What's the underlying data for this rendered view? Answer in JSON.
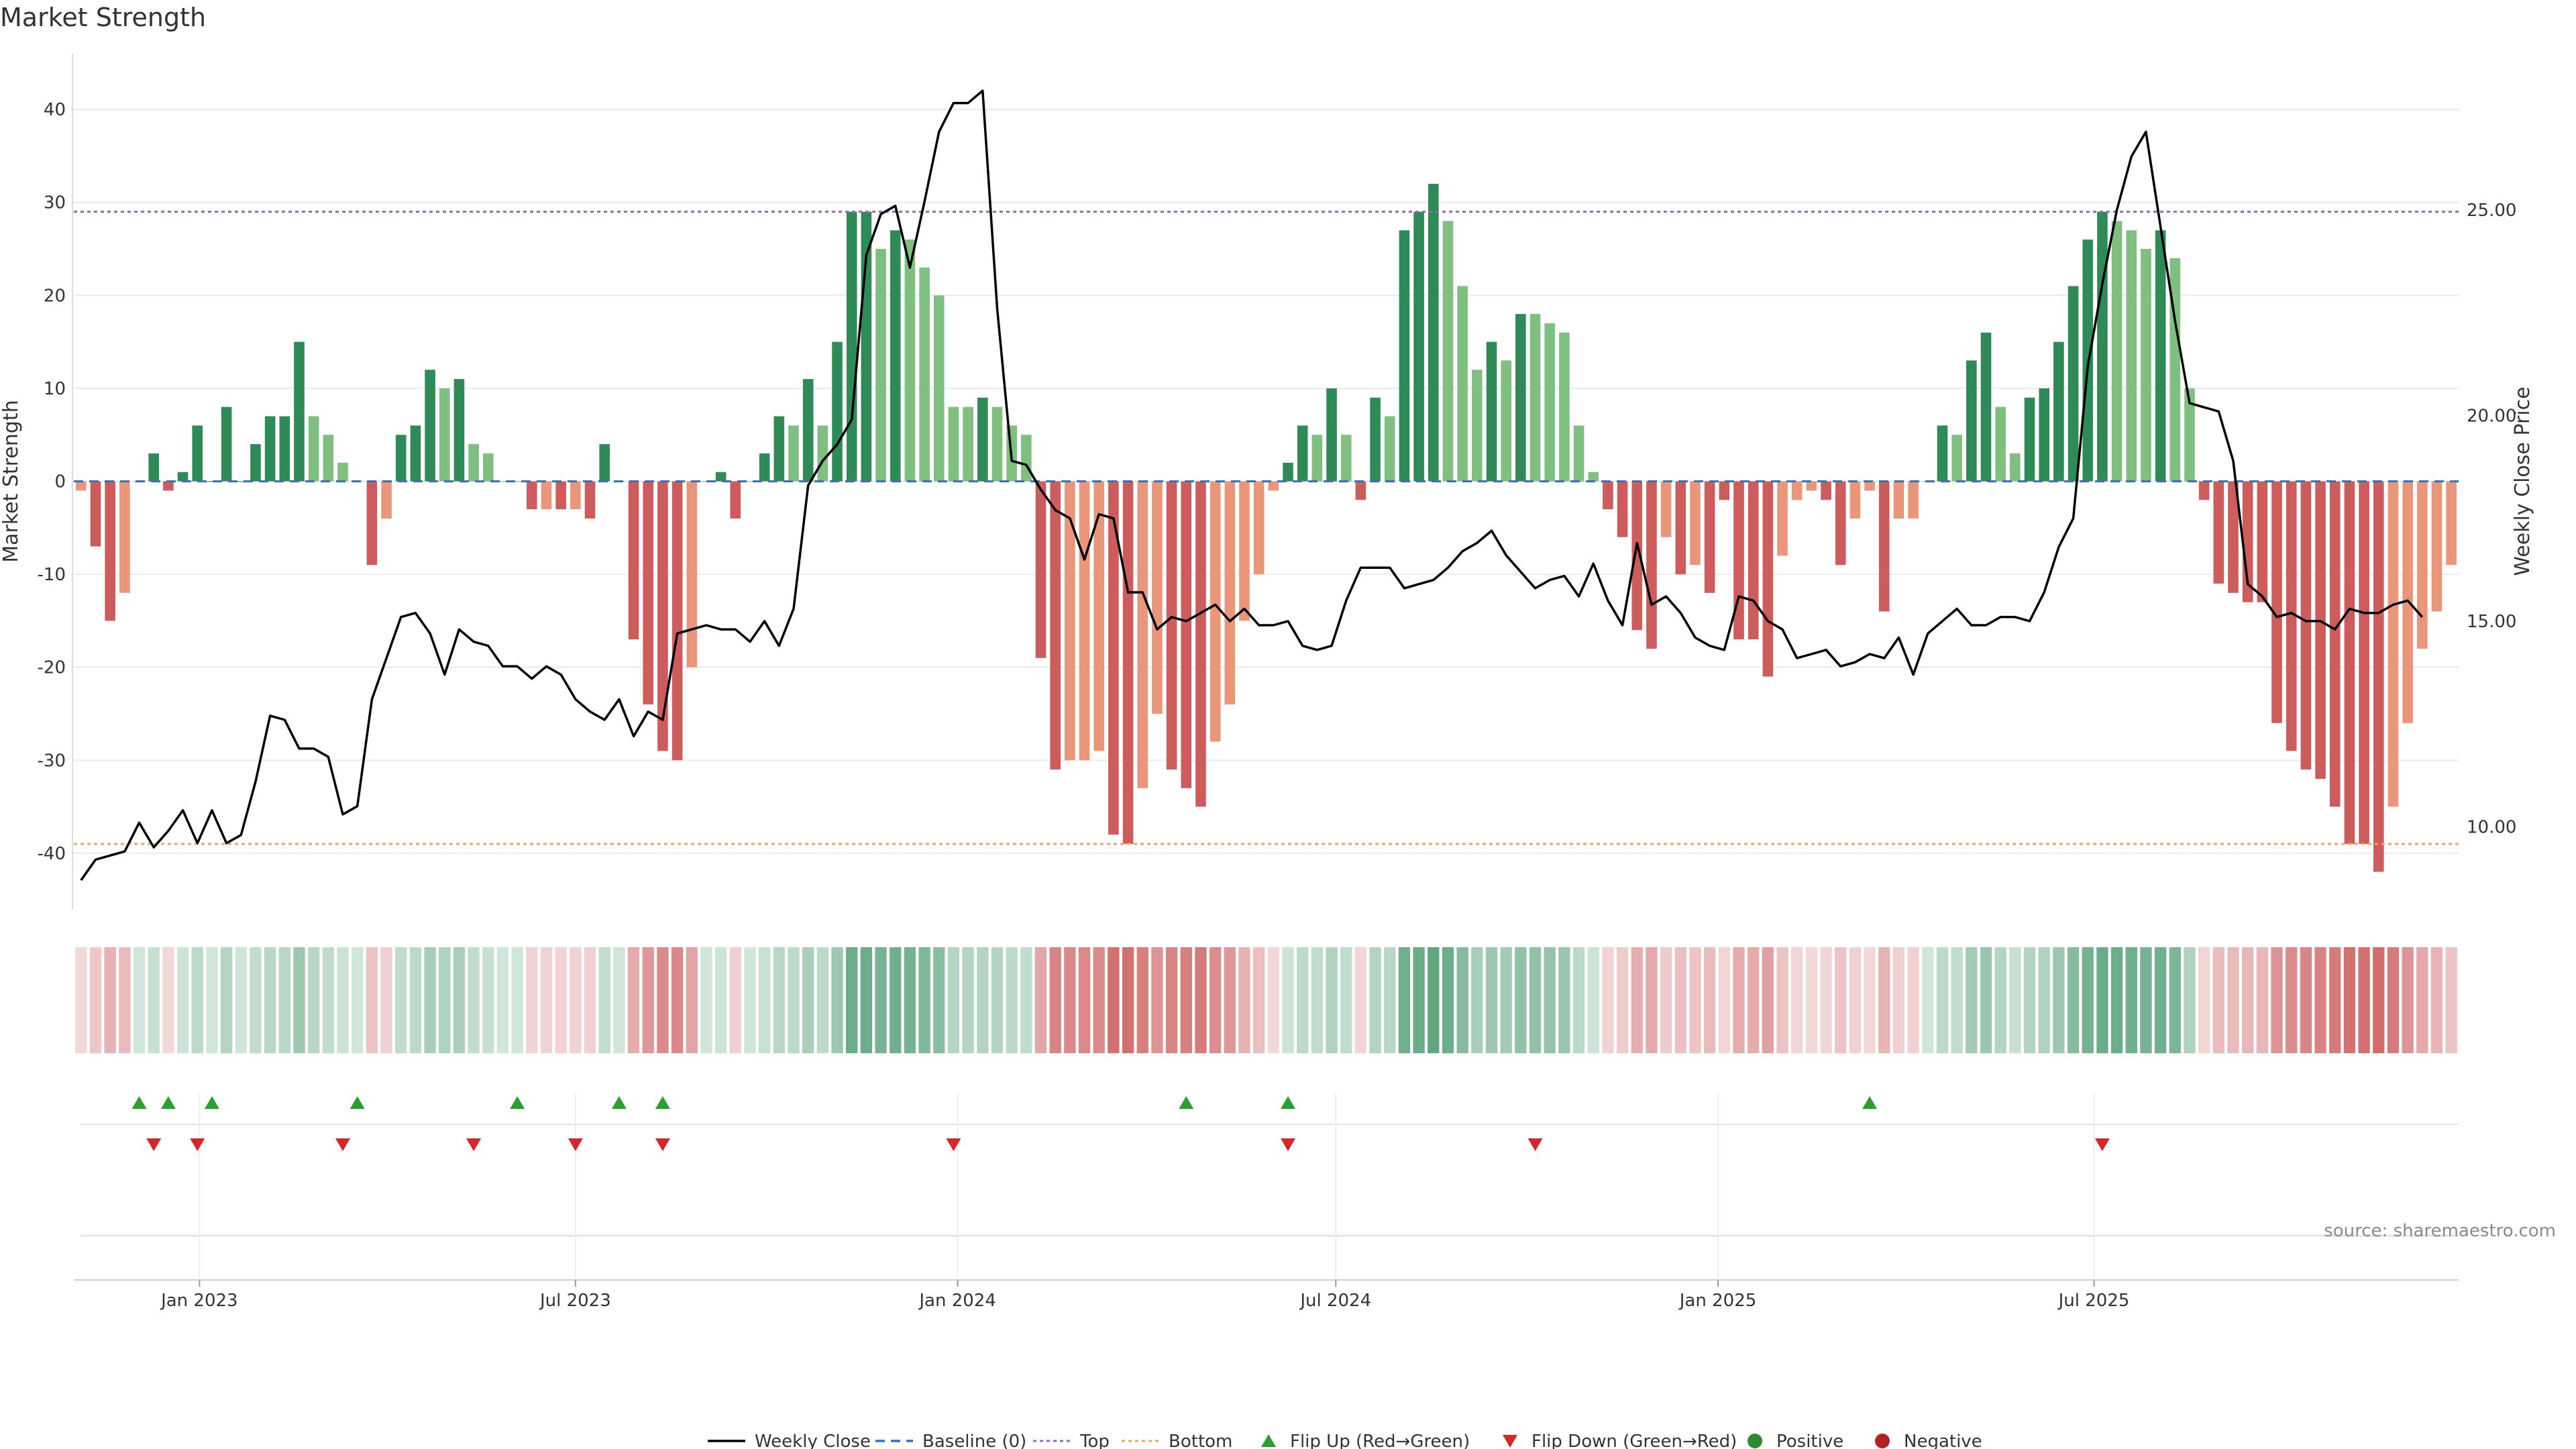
{
  "title": "Market Strength",
  "source": "source: sharemaestro.com",
  "colors": {
    "pos_strong": "#2e8b57",
    "pos_weak": "#7fbf7f",
    "neg_strong": "#cd5c5c",
    "neg_weak": "#e9967a",
    "line": "#000000",
    "baseline": "#3b6fb6",
    "top": "#9467bd",
    "bottom": "#f4a460",
    "flip_up": "#2ca02c",
    "flip_down": "#d62728",
    "positive": "#2e8b2e",
    "negative": "#b22222"
  },
  "chart_data": {
    "type": "bar",
    "ylabel_left": "Market Strength",
    "ylabel_right": "Weekly Close Price",
    "ylim_left": [
      -46,
      46
    ],
    "yticks_left": [
      "40",
      "30",
      "20",
      "10",
      "0",
      "-10",
      "-20",
      "-30",
      "-40"
    ],
    "ylim_right": [
      8,
      28.8
    ],
    "yticks_right": [
      "25.00",
      "20.00",
      "15.00",
      "10.00"
    ],
    "x_start": "2022-11-05",
    "x_step_days": 7,
    "xticks": [
      {
        "label": "Jan 2023",
        "date": "2023-01-01"
      },
      {
        "label": "Jul 2023",
        "date": "2023-07-01"
      },
      {
        "label": "Jan 2024",
        "date": "2024-01-01"
      },
      {
        "label": "Jul 2024",
        "date": "2024-07-01"
      },
      {
        "label": "Jan 2025",
        "date": "2025-01-01"
      },
      {
        "label": "Jul 2025",
        "date": "2025-07-01"
      }
    ],
    "top_level": 29,
    "bottom_level": -39,
    "strength": [
      -1,
      -7,
      -15,
      -12,
      0,
      3,
      -1,
      1,
      6,
      0,
      8,
      0,
      4,
      7,
      7,
      15,
      7,
      5,
      2,
      0,
      -9,
      -4,
      5,
      6,
      12,
      10,
      11,
      4,
      3,
      0,
      0,
      -3,
      -3,
      -3,
      -3,
      -4,
      4,
      0,
      -17,
      -24,
      -29,
      -30,
      -20,
      0,
      1,
      -4,
      0,
      3,
      7,
      6,
      11,
      6,
      15,
      29,
      29,
      25,
      27,
      26,
      23,
      20,
      8,
      8,
      9,
      8,
      6,
      5,
      -19,
      -31,
      -30,
      -30,
      -29,
      -38,
      -39,
      -33,
      -25,
      -31,
      -33,
      -35,
      -28,
      -24,
      -15,
      -10,
      -1,
      2,
      6,
      5,
      10,
      5,
      -2,
      9,
      7,
      27,
      29,
      32,
      28,
      21,
      12,
      15,
      13,
      18,
      18,
      17,
      16,
      6,
      1,
      -3,
      -6,
      -16,
      -18,
      -6,
      -10,
      -9,
      -12,
      -2,
      -17,
      -17,
      -21,
      -8,
      -2,
      -1,
      -2,
      -9,
      -4,
      -1,
      -14,
      -4,
      -4,
      0,
      6,
      5,
      13,
      16,
      8,
      3,
      9,
      10,
      15,
      21,
      26,
      29,
      28,
      27,
      25,
      27,
      24,
      10,
      -2,
      -11,
      -12,
      -13,
      -13,
      -26,
      -29,
      -31,
      -32,
      -35,
      -39,
      -39,
      -42,
      -35,
      -26,
      -18,
      -14,
      -9
    ],
    "bar_shade": [
      "w",
      "s",
      "s",
      "w",
      "w",
      "s",
      "s",
      "s",
      "s",
      "s",
      "s",
      "s",
      "s",
      "s",
      "s",
      "s",
      "w",
      "w",
      "w",
      "w",
      "s",
      "w",
      "s",
      "s",
      "s",
      "w",
      "s",
      "w",
      "w",
      "w",
      "w",
      "s",
      "w",
      "s",
      "w",
      "s",
      "s",
      "w",
      "s",
      "s",
      "s",
      "s",
      "w",
      "w",
      "s",
      "s",
      "w",
      "s",
      "s",
      "w",
      "s",
      "w",
      "s",
      "s",
      "s",
      "w",
      "s",
      "w",
      "w",
      "w",
      "w",
      "w",
      "s",
      "w",
      "w",
      "w",
      "s",
      "s",
      "w",
      "w",
      "w",
      "s",
      "s",
      "w",
      "w",
      "s",
      "s",
      "s",
      "w",
      "w",
      "w",
      "w",
      "w",
      "s",
      "s",
      "w",
      "s",
      "w",
      "s",
      "s",
      "w",
      "s",
      "s",
      "s",
      "w",
      "w",
      "w",
      "s",
      "w",
      "s",
      "w",
      "w",
      "w",
      "w",
      "w",
      "s",
      "s",
      "s",
      "s",
      "w",
      "s",
      "w",
      "s",
      "s",
      "s",
      "s",
      "s",
      "w",
      "w",
      "w",
      "s",
      "s",
      "w",
      "w",
      "s",
      "w",
      "w",
      "w",
      "s",
      "w",
      "s",
      "s",
      "w",
      "w",
      "s",
      "s",
      "s",
      "s",
      "s",
      "s",
      "w",
      "w",
      "w",
      "s",
      "w",
      "w",
      "s",
      "s",
      "s",
      "s",
      "s",
      "s",
      "s",
      "s",
      "s",
      "s",
      "s",
      "s",
      "s",
      "w",
      "w",
      "w",
      "w",
      "w"
    ],
    "weekly_close": [
      8.7,
      9.2,
      9.3,
      9.4,
      10.1,
      9.5,
      9.9,
      10.4,
      9.6,
      10.4,
      9.6,
      9.8,
      11.1,
      12.7,
      12.6,
      11.9,
      11.9,
      11.7,
      10.3,
      10.5,
      13.1,
      14.1,
      15.1,
      15.2,
      14.7,
      13.7,
      14.8,
      14.5,
      14.4,
      13.9,
      13.9,
      13.6,
      13.9,
      13.7,
      13.1,
      12.8,
      12.6,
      13.1,
      12.2,
      12.8,
      12.6,
      14.7,
      14.8,
      14.9,
      14.8,
      14.8,
      14.5,
      15.0,
      14.4,
      15.3,
      18.3,
      18.9,
      19.3,
      19.9,
      23.9,
      24.9,
      25.1,
      23.6,
      25.2,
      26.9,
      27.6,
      27.6,
      27.9,
      22.6,
      18.9,
      18.8,
      18.2,
      17.7,
      17.5,
      16.5,
      17.6,
      17.5,
      15.7,
      15.7,
      14.8,
      15.1,
      15.0,
      15.2,
      15.4,
      15.0,
      15.3,
      14.9,
      14.9,
      15.0,
      14.4,
      14.3,
      14.4,
      15.5,
      16.3,
      16.3,
      16.3,
      15.8,
      15.9,
      16.0,
      16.3,
      16.7,
      16.9,
      17.2,
      16.6,
      16.2,
      15.8,
      16.0,
      16.1,
      15.6,
      16.4,
      15.5,
      14.9,
      16.9,
      15.4,
      15.6,
      15.2,
      14.6,
      14.4,
      14.3,
      15.6,
      15.5,
      15.0,
      14.8,
      14.1,
      14.2,
      14.3,
      13.9,
      14.0,
      14.2,
      14.1,
      14.6,
      13.7,
      14.7,
      15.0,
      15.3,
      14.9,
      14.9,
      15.1,
      15.1,
      15.0,
      15.7,
      16.8,
      17.5,
      21.2,
      23.2,
      25.0,
      26.3,
      26.9,
      24.6,
      22.3,
      20.3,
      20.2,
      20.1,
      18.9,
      15.9,
      15.6,
      15.1,
      15.2,
      15.0,
      15.0,
      14.8,
      15.3,
      15.2,
      15.2,
      15.4,
      15.5,
      15.1
    ],
    "flip_up": [
      "2022-12-03",
      "2022-12-17",
      "2023-01-07",
      "2023-03-18",
      "2023-06-03",
      "2023-07-22",
      "2023-08-12",
      "2024-04-20",
      "2024-06-08",
      "2025-03-15"
    ],
    "flip_down": [
      "2022-12-10",
      "2022-12-31",
      "2023-03-11",
      "2023-05-13",
      "2023-07-01",
      "2023-08-12",
      "2023-12-30",
      "2024-06-08",
      "2024-10-05",
      "2025-07-05"
    ],
    "legend": [
      "Weekly Close",
      "Baseline (0)",
      "Top",
      "Bottom",
      "Flip Up (Red→Green)",
      "Flip Down (Green→Red)",
      "Positive",
      "Negative"
    ],
    "legend_placement": "bottom-center",
    "grid": true
  }
}
